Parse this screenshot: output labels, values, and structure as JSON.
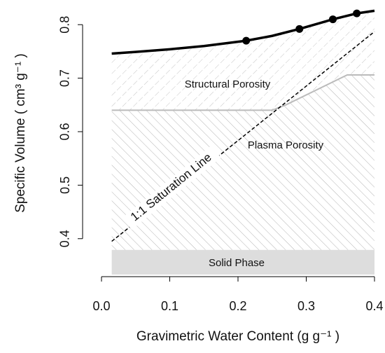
{
  "chart_data": {
    "type": "line",
    "xlabel": "Gravimetric Water Content (g g⁻¹ )",
    "ylabel": "Specific Volume ( cm³ g⁻¹ )",
    "xlim": [
      -0.0277,
      0.4154
    ],
    "ylim": [
      0.329,
      0.833
    ],
    "xticks": [
      {
        "value": 0,
        "label": "0.0"
      },
      0.1,
      0.2,
      0.3,
      0.4
    ],
    "yticks": [
      0.4,
      0.5,
      0.6,
      0.7,
      0.8
    ],
    "curve": {
      "color": "#000000",
      "x": [
        0.015,
        0.05,
        0.1,
        0.15,
        0.212,
        0.25,
        0.29,
        0.32,
        0.339,
        0.374,
        0.4
      ],
      "values": [
        0.746,
        0.749,
        0.754,
        0.76,
        0.77,
        0.779,
        0.792,
        0.803,
        0.81,
        0.821,
        0.826
      ]
    },
    "points": {
      "color": "#000000",
      "x": [
        0.212,
        0.29,
        0.339,
        0.374
      ],
      "values": [
        0.77,
        0.792,
        0.81,
        0.821
      ]
    },
    "saturation_line": {
      "label": "1:1 Saturation Line",
      "color": "#000000",
      "x": [
        0.015,
        0.4
      ],
      "values": [
        0.395,
        0.787
      ]
    },
    "boundary": {
      "color": "#bbbbbb",
      "x": [
        0.015,
        0.25,
        0.27,
        0.36,
        0.4
      ],
      "values": [
        0.64,
        0.64,
        0.65,
        0.706,
        0.706
      ]
    },
    "solid_phase": {
      "label": "Solid Phase",
      "color": "#dddddd",
      "range": [
        0.333,
        0.379
      ]
    },
    "regions": [
      "Structural Porosity",
      "Plasma Porosity"
    ]
  }
}
